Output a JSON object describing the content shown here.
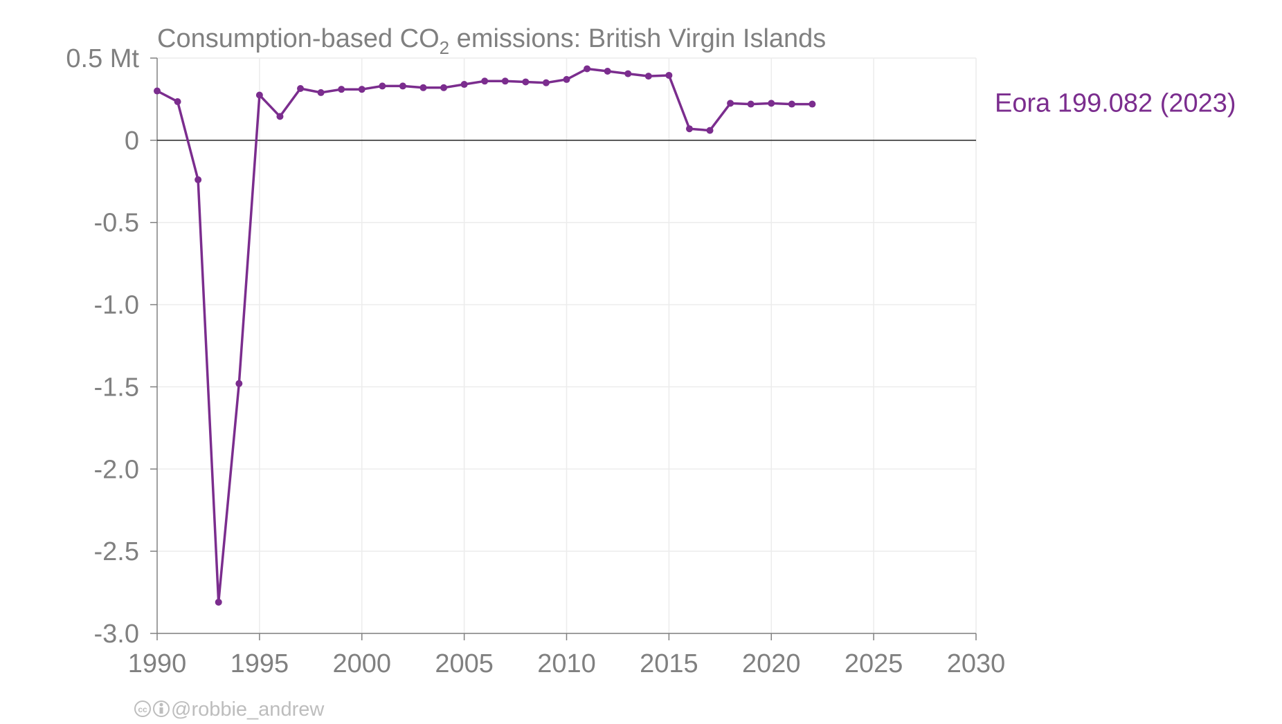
{
  "chart_data": {
    "type": "line",
    "title": {
      "prefix": "Consumption-based CO",
      "subscript": "2",
      "suffix": " emissions: British Virgin Islands"
    },
    "xlabel": "",
    "ylabel": "",
    "xlim": [
      1990,
      2030
    ],
    "ylim": [
      -3.0,
      0.5
    ],
    "x_ticks": [
      1990,
      1995,
      2000,
      2005,
      2010,
      2015,
      2020,
      2025,
      2030
    ],
    "y_ticks": [
      {
        "value": 0.5,
        "label": "0.5 Mt"
      },
      {
        "value": 0,
        "label": "0"
      },
      {
        "value": -0.5,
        "label": "-0.5"
      },
      {
        "value": -1.0,
        "label": "-1.0"
      },
      {
        "value": -1.5,
        "label": "-1.5"
      },
      {
        "value": -2.0,
        "label": "-2.0"
      },
      {
        "value": -2.5,
        "label": "-2.5"
      },
      {
        "value": -3.0,
        "label": "-3.0"
      }
    ],
    "grid": true,
    "zero_line": true,
    "series": [
      {
        "name": "Eora",
        "label": "Eora 199.082 (2023)",
        "color": "#7b2d8e",
        "x": [
          1990,
          1991,
          1992,
          1993,
          1994,
          1995,
          1996,
          1997,
          1998,
          1999,
          2000,
          2001,
          2002,
          2003,
          2004,
          2005,
          2006,
          2007,
          2008,
          2009,
          2010,
          2011,
          2012,
          2013,
          2014,
          2015,
          2016,
          2017,
          2018,
          2019,
          2020,
          2021,
          2022
        ],
        "values": [
          0.3,
          0.235,
          -0.24,
          -2.81,
          -1.48,
          0.275,
          0.145,
          0.315,
          0.29,
          0.31,
          0.31,
          0.33,
          0.33,
          0.32,
          0.32,
          0.34,
          0.36,
          0.36,
          0.355,
          0.35,
          0.37,
          0.435,
          0.42,
          0.405,
          0.39,
          0.395,
          0.07,
          0.06,
          0.225,
          0.22,
          0.225,
          0.22,
          0.22
        ]
      }
    ]
  },
  "credit": {
    "icons": [
      "cc-icon",
      "attribution-icon"
    ],
    "handle": "@robbie_andrew"
  }
}
